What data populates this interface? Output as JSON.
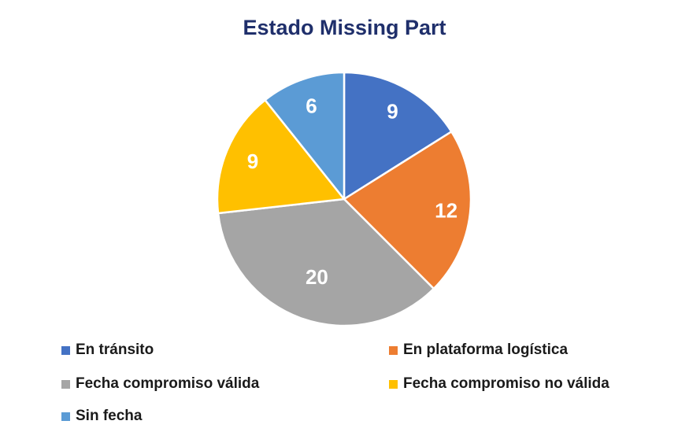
{
  "chart_data": {
    "type": "pie",
    "title": "Estado Missing Part",
    "categories": [
      "En tránsito",
      "En plataforma logística",
      "Fecha compromiso válida",
      "Fecha compromiso no válida",
      "Sin fecha"
    ],
    "values": [
      9,
      12,
      20,
      9,
      6
    ],
    "data_labels": [
      "9",
      "12",
      "20",
      "9",
      "6"
    ],
    "colors": [
      "#4472c4",
      "#ed7d31",
      "#a5a5a5",
      "#ffc000",
      "#5b9bd5"
    ],
    "start_angle": "12 o'clock",
    "direction": "clockwise",
    "legend_position": "bottom"
  }
}
